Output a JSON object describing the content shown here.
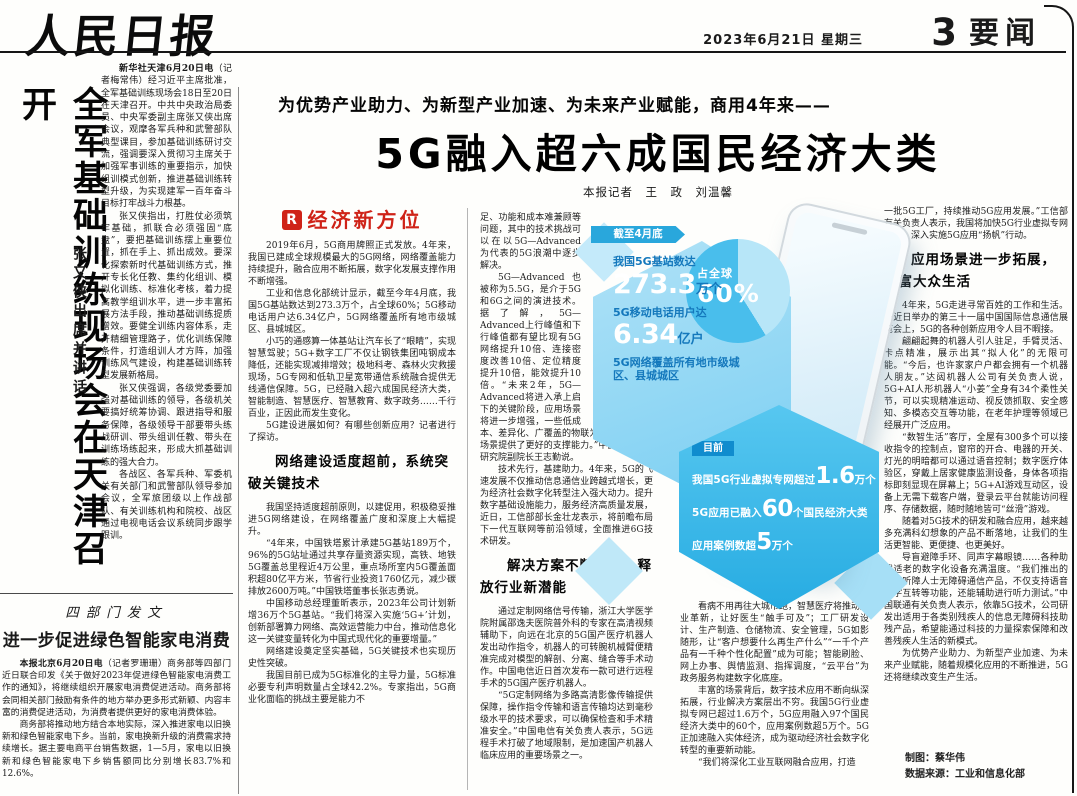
{
  "masthead": {
    "logo": "人民日报",
    "date": "2023年6月21日 星期三",
    "page_number": "3",
    "section": "要闻"
  },
  "army_article": {
    "headline": "全军基础训练现场会在天津召开",
    "subhead": "张又侠出席并讲话",
    "dateline": "新华社天津6月20日电",
    "p1": "（记者梅常伟）经习近平主席批准，全军基础训练现场会18日至20日在天津召开。中共中央政治局委员、中央军委副主席张又侠出席会议，观摩各军兵种和武警部队典型课目，参加基础训练研讨交流，强调要深入贯彻习主席关于加强军事训练的重要指示，加快组训模式创新，推进基础训练转型升级，为实现建军一百年奋斗目标打牢战斗力根基。",
    "p2": "张又侠指出，打胜仗必须筑牢基础，抓联合必须强固“底盘”，要把基础训练摆上重要位置，抓在手上、抓出成效。要深化探索新时代基础训练方式，推开专长化任教、集约化组训、模拟化训练、标准化考核，着力提高教学组训水平，进一步丰富拓展方法手段，推动基础训练提质增效。要健全训练内容体系，走开精细管理路子，优化训练保障条件，打造组训人才方阵，加强训练风气建设，构建基础训练转型发展新格局。",
    "p3": "张又侠强调，各级党委要加强对基础训练的领导，各级机关要搞好统筹协调、跟进指导和服务保障，各级领导干部要带头练战研训、带头组训任教、带头在训练场练起来，形成大抓基础训练的强大合力。",
    "p4": "各战区、各军兵种、军委机关有关部门和武警部队领导参加会议，全军旅团级以上作战部队、有关训练机构和院校、战区通过电视电话会议系统同步跟学跟训。"
  },
  "appliance_article": {
    "kicker": "四部门发文",
    "headline": "进一步促进绿色智能家电消费",
    "dateline": "本报北京6月20日电",
    "p1": "（记者罗珊珊）商务部等四部门近日联合印发《关于做好2023年促进绿色智能家电消费工作的通知》，将继续组织开展家电消费促进活动。商务部将会同相关部门鼓励有条件的地方举办更多形式新颖、内容丰富的消费促进活动，为消费者提供更好的家电消费体验。",
    "p2": "商务部将推动地方结合本地实际，深入推进家电以旧换新和绿色智能家电下乡。当前，家电换新升级的消费需求持续增长。据主要电商平台销售数据，1—5月，家电以旧换新和绿色智能家电下乡销售额同比分别增长83.7%和12.6%。"
  },
  "g5_article": {
    "kicker": "为优势产业助力、为新型产业加速、为未来产业赋能，商用4年来——",
    "headline": "5G融入超六成国民经济大类",
    "byline": "本报记者　王　政　刘温馨",
    "column_badge": "R",
    "column_name": "经济新方位",
    "subhead1": "网络建设适度超前，系统突破关键技术",
    "subhead2": "解决方案不断优化，释放行业新潜能",
    "subhead3": "应用场景进一步拓展，丰富大众生活",
    "col1_top": [
      "2019年6月，5G商用牌照正式发放。4年来，我国已建成全球规模最大的5G网络，网络覆盖能力持续提升，融合应用不断拓展，数字化发展支撑作用不断增强。",
      "工业和信息化部统计显示，截至今年4月底，我国5G基站数达到273.3万个，占全球60%；5G移动电话用户达6.34亿户，5G网络覆盖所有地市级城区、县城城区。",
      "小巧的通感算一体基站让汽车长了“眼睛”，实现智慧驾驶；5G+数字工厂不仅让钢铁集团吨钢成本降低，还能实现减排增效；极地科考、森林火灾救援现场，5G专网和低轨卫星宽带通信系统融合提供无线通信保障。5G，已经融入超六成国民经济大类，智能制造、智慧医疗、智慧教育、数字政务……千行百业，正因此而发生变化。",
      "5G建设进展如何？有哪些创新应用？记者进行了探访。"
    ],
    "col1_bottom": [
      "我国坚持适度超前原则，以建促用，积极稳妥推进5G网络建设，在网络覆盖广度和深度上大幅提升。",
      "“4年来，中国铁塔累计承建5G基站189万个，96%的5G站址通过共享存量资源实现，高铁、地铁5G覆盖总里程近4万公里，重点场所室内5G覆盖面积超80亿平方米，节省行业投资1760亿元，减少碳排放2600万吨。”中国铁塔董事长张志勇说。",
      "中国移动总经理董昕表示，2023年公司计划新增36万个5G基站。“我们将深入实施‘5G+’计划，创新部署算力网络、高效运营能力中台，推动信息化这一关键变量转化为中国式现代化的重要增量。”",
      "网络建设奠定坚实基础，5G关键技术也实现历史性突破。",
      "我国目前已成为5G标准化的主导力量，5G标准必要专利声明数量占全球42.2%。专家指出，5G商业化面临的挑战主要是能力不"
    ],
    "col2_cont": "足、功能和成本难兼顾等问题，其中的技术挑战可以在以5G—Advanced为代表的5G浪潮中逐步解决。",
    "col2_top": [
      "5G—Advanced也被称为5.5G，是介于5G和6G之间的演进技术。据了解，5G—Advanced上行峰值和下行峰值都有望比现有5G网络提升10倍、连接密度改善10倍、定位精度提升10倍，能效提升10倍。“未来2年，5G—Advanced将进入承上启下的关键阶段，应用场景将进一步增强，一些低成本、差异化、广覆盖的物联为创造新的应用场景提供了更好的支撑能力。”中国信息通信研究院副院长王志勤说。",
      "技术先行，基建助力。4年来，5G的飞速发展不仅推动信息通信业跨越式增长，更为经济社会数字化转型注入强大动力。提升数字基础设施能力，服务经济高质量发展，近日，工信部部长金壮龙表示，将前瞻布局下一代互联网等前沿领域，全面推进6G技术研发。"
    ],
    "col2_bottom": [
      "通过定制网络信号传输，浙江大学医学院附属邵逸夫医院普外科的专家在高清视频辅助下，向远在北京的5G国产医疗机器人发出动作指令，机器人的可转腕机械臂便精准完成对模型的解剖、分离、缝合等手术动作。中国电信近日首次发布一款可进行远程手术的5G国产医疗机器人。",
      "“5G定制网络为多路高清影像传输提供保障，操作指令传输和语言传输均达到毫秒级水平的技术要求，可以确保检查和手术精准安全。”中国电信有关负责人表示，5G远程手术打破了地域限制，是加速国产机器人临床应用的重要场景之一。"
    ],
    "col3": [
      "看病不用再往大城市跑，智慧医疗将推动产业革新，让好医生“触手可及”；工厂研发设计、生产制造、仓储物流、安全管理，5G如影随形，让“客户想要什么再生产什么”“一千个产品有一千种个性化配置”成为可能；智能刷脸、网上办事、舆情监测、指挥调度，“云平台”为政务服务构建数字化底座。",
      "丰富的场景背后，数字技术应用不断向纵深拓展，行业解决方案层出不穷。我国5G行业虚拟专网已超过1.6万个，5G应用融入97个国民经济大类中的60个，应用案例数超5万个。5G正加速融入实体经济，成为驱动经济社会数字化转型的重要新动能。",
      "“我们将深化工业互联网融合应用，打造"
    ],
    "col4_cont": "一批5G工厂，持续推动5G应用发展。”工信部有关负责人表示，我国将加快5G行业虚拟专网建设，深入实施5G应用“扬帆”行动。",
    "col4": [
      "4年来，5G走进寻常百姓的工作和生活。在近日举办的第三十一届中国国际信息通信展览会上，5G的各种创新应用令人目不暇接。",
      "翩翩起舞的机器人引人驻足，手臂灵活、卡点精准，展示出其“拟人化”的无限可能。“今后，也许家家户户都会拥有一个机器人朋友。”达闼机器人公司有关负责人说，5G+AI人形机器人“小姜”全身有34个柔性关节，可以实现精准运动、视反馈抓取、安全感知、多模态交互等功能，在老年护理等领域已经展开广泛应用。",
      "“数智生活”客厅，全屋有300多个可以接收指令的控制点，窗帘的开合、电器的开关、灯光的明暗都可以通过语音控制；数字医疗体验区，穿戴上居家健康监测设备，身体各项指标即刻显现在屏幕上；5G+AI游戏互动区，设备上无需下载客户端，登录云平台就能访问程序、存储数据，随时随地皆可“丝滑”游戏。",
      "随着对5G技术的研发和融合应用，越来越多充满科幻想象的产品不断落地，让我们的生活更智能、更便捷、也更美好。",
      "导盲避障手环、同声字幕眼镜……各种助残适老的数字化设备充满温度。“我们推出的首款听障人士无障碍通信产品，不仅支持语音文字互转等功能，还能辅助进行听力测试。”中国联通有关负责人表示，依靠5G技术，公司研发出适用于各类别残疾人的信息无障碍科技助残产品，希望能通过科技的力量探索保障和改善残疾人生活的新模式。",
      "为优势产业助力、为新型产业加速、为未来产业赋能，随着规模化应用的不断推进，5G还将继续改变生产生活。"
    ],
    "credit_design": "制图：蔡华伟",
    "credit_source": "数据来源：工业和信息化部"
  },
  "infographic": {
    "asof_label": "截至4月底",
    "stat1_label": "我国5G基站数达",
    "stat1_value": "273.3",
    "stat1_unit": "万个",
    "pie_label": "占全球",
    "pie_value": "60%",
    "pie_share_percent": 60,
    "stat2_label": "5G移动电话用户达",
    "stat2_value": "6.34",
    "stat2_unit": "亿户",
    "stat3_label": "5G网络覆盖所有地市级城区、县城城区",
    "now_label": "目前",
    "now1_prefix": "我国5G行业虚拟专网超过",
    "now1_value": "1.6",
    "now1_suffix": "万个",
    "now2_prefix": "5G应用已融入",
    "now2_value": "60",
    "now2_suffix": "个国民经济大类",
    "now3_prefix": "应用案例数超",
    "now3_value": "5",
    "now3_suffix": "万个",
    "colors": {
      "band_blue": "#29a7dc",
      "hex_light_blue": "#7bcff2",
      "hex_deep_blue": "#27ace2",
      "label_dark_blue": "#1478bc",
      "accent_red": "#cf2318"
    }
  }
}
